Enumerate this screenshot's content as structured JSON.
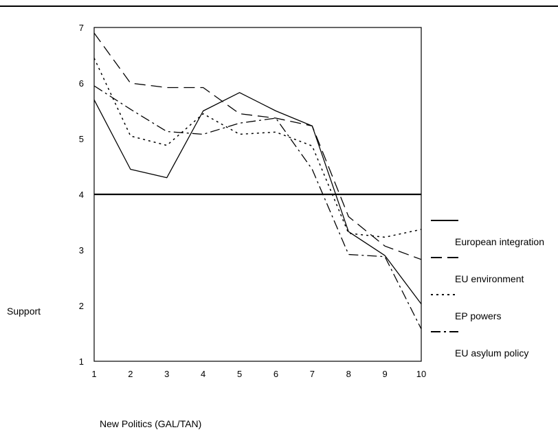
{
  "chart_data": {
    "type": "line",
    "xlabel": "New Politics (GAL/TAN)",
    "ylabel": "Support",
    "x": [
      1,
      2,
      3,
      4,
      5,
      6,
      7,
      8,
      9,
      10
    ],
    "xlim": [
      1,
      10
    ],
    "ylim": [
      1,
      7
    ],
    "xticks": [
      "1",
      "2",
      "3",
      "4",
      "5",
      "6",
      "7",
      "8",
      "9",
      "10"
    ],
    "yticks": [
      "1",
      "2",
      "3",
      "4",
      "5",
      "6",
      "7"
    ],
    "reference_line": 4,
    "grid": false,
    "legend_position": "right",
    "series": [
      {
        "name": "European integration",
        "style": "solid",
        "values": [
          5.7,
          4.45,
          4.3,
          5.5,
          5.83,
          5.5,
          5.23,
          3.33,
          2.9,
          2.03
        ]
      },
      {
        "name": "EU environment",
        "style": "long-dash",
        "values": [
          6.9,
          6.0,
          5.92,
          5.92,
          5.45,
          5.37,
          5.23,
          3.6,
          3.07,
          2.83
        ]
      },
      {
        "name": "EP powers",
        "style": "dotted",
        "values": [
          6.45,
          5.05,
          4.88,
          5.45,
          5.08,
          5.12,
          4.87,
          3.3,
          3.23,
          3.37
        ]
      },
      {
        "name": "EU asylum policy",
        "style": "dash-dot",
        "values": [
          5.95,
          5.53,
          5.13,
          5.08,
          5.28,
          5.37,
          4.45,
          2.92,
          2.88,
          1.58
        ]
      }
    ]
  }
}
